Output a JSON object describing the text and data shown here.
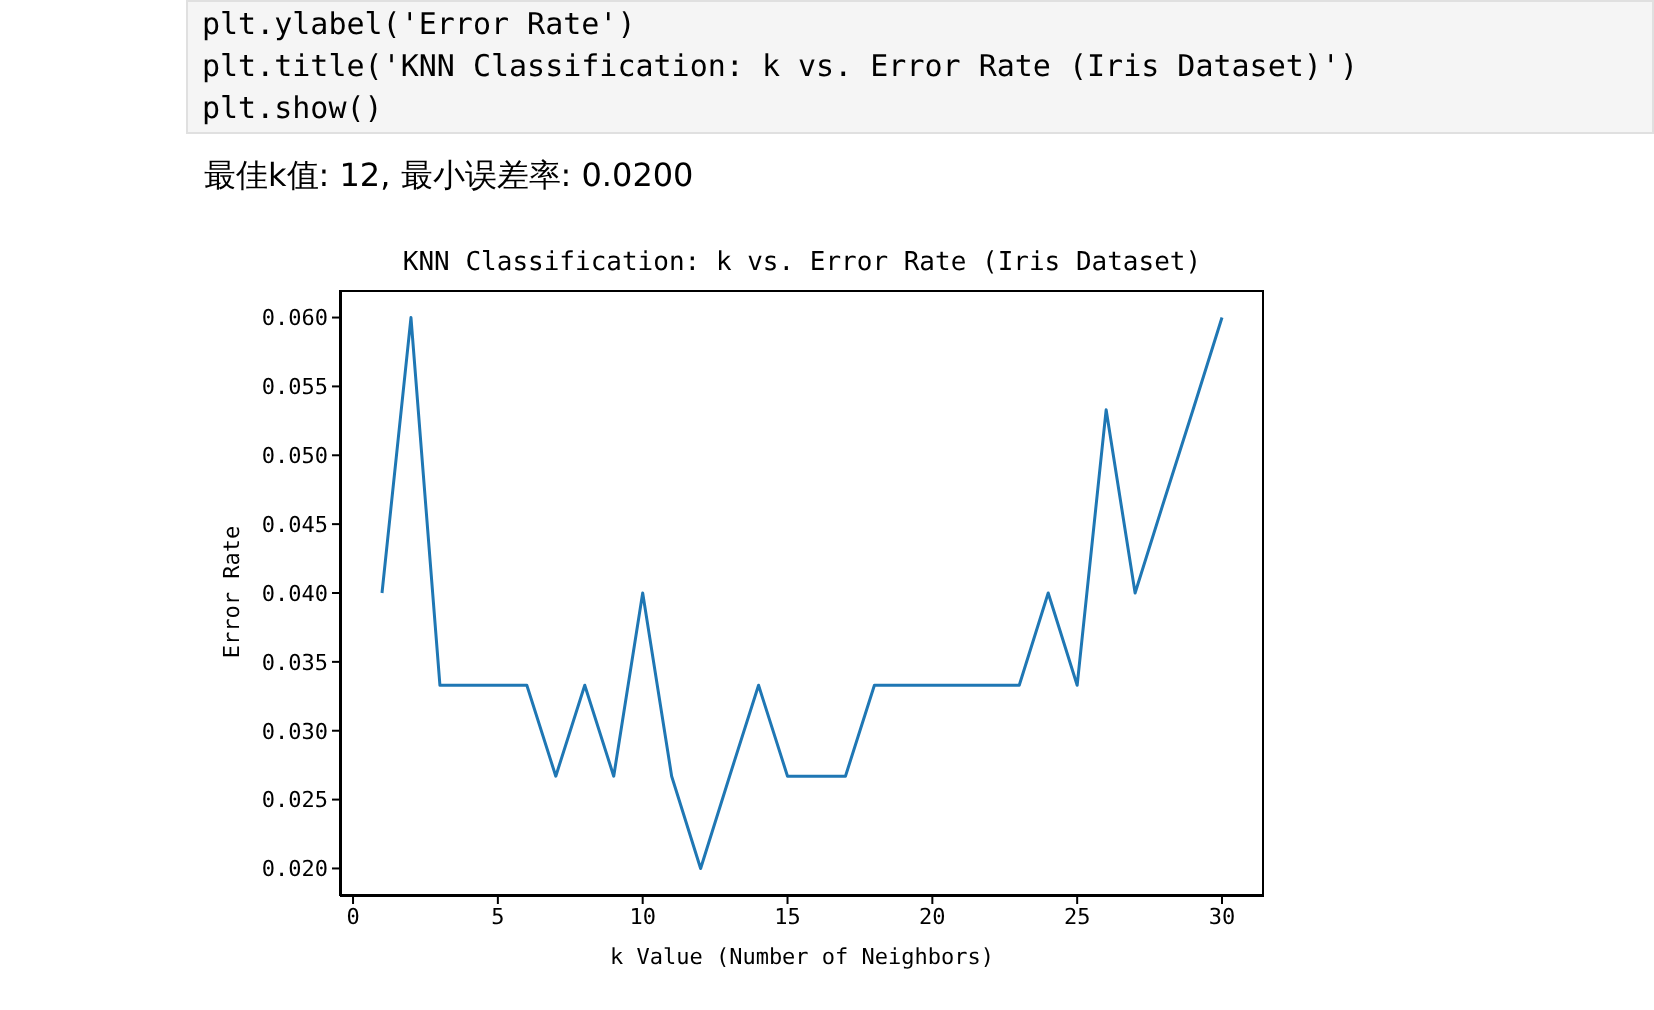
{
  "chart_data": {
    "type": "line",
    "title": "KNN Classification: k vs. Error Rate (Iris Dataset)",
    "subtitle": "最佳k值: 12, 最小误差率: 0.0200",
    "annotations": [
      "plt.ylabel('Error Rate')",
      "plt.title('KNN Classification: k vs. Error Rate (Iris Dataset)')",
      "plt.show()"
    ],
    "xlabel": "k Value (Number of Neighbors)",
    "ylabel": "Error Rate",
    "x": [
      1,
      2,
      3,
      4,
      5,
      6,
      7,
      8,
      9,
      10,
      11,
      12,
      13,
      14,
      15,
      16,
      17,
      18,
      19,
      20,
      21,
      22,
      23,
      24,
      25,
      26,
      27,
      28,
      29,
      30
    ],
    "series": [
      {
        "color": "#1f77b4",
        "values": [
          0.04,
          0.06,
          0.0333,
          0.0333,
          0.0333,
          0.0333,
          0.0267,
          0.0333,
          0.0267,
          0.04,
          0.0267,
          0.02,
          0.0267,
          0.0333,
          0.0267,
          0.0267,
          0.0267,
          0.0333,
          0.0333,
          0.0333,
          0.0333,
          0.0333,
          0.0333,
          0.04,
          0.0333,
          0.0533,
          0.04,
          0.0467,
          0.0533,
          0.06
        ]
      }
    ],
    "xlim": [
      -0.45,
      31.45
    ],
    "xticks": [
      0,
      5,
      10,
      15,
      20,
      25,
      30
    ],
    "ylim": [
      0.018,
      0.062
    ],
    "yticks": [
      {
        "value": 0.02,
        "label": "0.020"
      },
      {
        "value": 0.025,
        "label": "0.025"
      },
      {
        "value": 0.03,
        "label": "0.030"
      },
      {
        "value": 0.035,
        "label": "0.035"
      },
      {
        "value": 0.04,
        "label": "0.040"
      },
      {
        "value": 0.045,
        "label": "0.045"
      },
      {
        "value": 0.05,
        "label": "0.050"
      },
      {
        "value": 0.055,
        "label": "0.055"
      },
      {
        "value": 0.06,
        "label": "0.060"
      }
    ]
  }
}
